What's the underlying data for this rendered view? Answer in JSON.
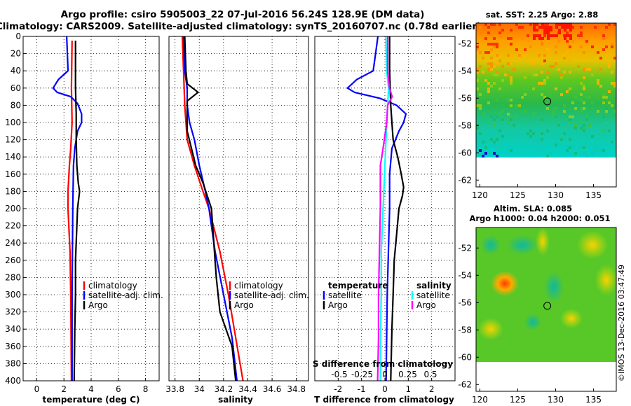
{
  "figure": {
    "title_line1": "Argo profile: csiro 5905003_22 07-Jul-2016 56.24S 128.9E (DM data)",
    "title_line2": "Climatology: CARS2009. Satellite-adjusted climatology: synTS_20160707.nc (0.78d earlier)",
    "watermark": "©IMOS 13-Dec-2016 03:47:49"
  },
  "colors": {
    "climatology": "#ff0000",
    "satellite_adj": "#0000ff",
    "argo": "#000000",
    "satellite_salinity": "#00ffff",
    "argo_salinity_diff": "#ff00ff"
  },
  "chart_data": [
    {
      "id": "temperature",
      "type": "line",
      "xlabel": "temperature (deg C)",
      "ylabel": "",
      "xlim": [
        -1,
        9
      ],
      "ylim": [
        400,
        0
      ],
      "xticks": [
        0,
        2,
        4,
        6,
        8
      ],
      "xtick_labels": [
        "0",
        "2",
        "4",
        "6",
        "8"
      ],
      "yticks": [
        0,
        20,
        40,
        60,
        80,
        100,
        120,
        140,
        160,
        180,
        200,
        220,
        240,
        260,
        280,
        300,
        320,
        340,
        360,
        380,
        400
      ],
      "yticks_labeled": true,
      "legend": [
        "climatology",
        "satellite-adj. clim.",
        "Argo"
      ],
      "series": [
        {
          "name": "climatology",
          "color": "#ff0000",
          "depth": [
            5,
            60,
            100,
            130,
            150,
            180,
            200,
            250,
            300,
            400
          ],
          "values": [
            2.6,
            2.55,
            2.6,
            2.5,
            2.4,
            2.3,
            2.3,
            2.45,
            2.5,
            2.55
          ]
        },
        {
          "name": "satellite-adj. clim.",
          "color": "#0000ff",
          "depth": [
            0,
            20,
            40,
            50,
            60,
            65,
            70,
            78,
            90,
            100,
            110,
            130,
            150,
            200,
            300,
            400
          ],
          "values": [
            2.2,
            2.25,
            2.3,
            1.6,
            1.2,
            1.5,
            2.5,
            3.0,
            3.3,
            3.3,
            3.0,
            2.8,
            2.7,
            2.65,
            2.6,
            2.6
          ]
        },
        {
          "name": "Argo",
          "color": "#000000",
          "depth": [
            5,
            30,
            60,
            90,
            120,
            150,
            170,
            180,
            200,
            260,
            300,
            340,
            400
          ],
          "values": [
            2.85,
            2.85,
            2.85,
            2.9,
            2.9,
            2.95,
            3.05,
            3.15,
            3.0,
            2.85,
            2.85,
            2.8,
            2.75
          ]
        }
      ]
    },
    {
      "id": "salinity",
      "type": "line",
      "xlabel": "salinity",
      "xlim": [
        33.75,
        34.9
      ],
      "ylim": [
        400,
        0
      ],
      "xticks": [
        33.8,
        34,
        34.2,
        34.4,
        34.6,
        34.8
      ],
      "xtick_labels": [
        "33.8",
        "34",
        "34.2",
        "34.4",
        "34.6",
        "34.8"
      ],
      "legend": [
        "climatology",
        "satellite-adj. clim.",
        "Argo"
      ],
      "series": [
        {
          "name": "climatology",
          "color": "#ff0000",
          "depth": [
            0,
            40,
            80,
            120,
            150,
            180,
            200,
            250,
            300,
            350,
            400
          ],
          "values": [
            33.86,
            33.87,
            33.88,
            33.9,
            33.96,
            34.03,
            34.08,
            34.17,
            34.24,
            34.3,
            34.36
          ]
        },
        {
          "name": "satellite-adj. clim.",
          "color": "#0000ff",
          "depth": [
            0,
            40,
            60,
            80,
            100,
            120,
            150,
            180,
            200,
            250,
            300,
            350,
            400
          ],
          "values": [
            33.87,
            33.88,
            33.9,
            33.9,
            33.92,
            33.96,
            34.0,
            34.05,
            34.08,
            34.13,
            34.2,
            34.27,
            34.31
          ]
        },
        {
          "name": "Argo",
          "color": "#000000",
          "depth": [
            0,
            40,
            55,
            65,
            75,
            90,
            110,
            150,
            170,
            200,
            240,
            280,
            320,
            360,
            400
          ],
          "values": [
            33.88,
            33.89,
            33.9,
            33.99,
            33.9,
            33.9,
            33.9,
            33.97,
            34.03,
            34.1,
            34.12,
            34.14,
            34.17,
            34.27,
            34.3
          ]
        }
      ]
    },
    {
      "id": "difference",
      "type": "line",
      "xlabel": "T difference from climatology",
      "xlim": [
        -3,
        3
      ],
      "ylim": [
        400,
        0
      ],
      "xticks": [
        -2,
        -1,
        0,
        1,
        2
      ],
      "xtick_labels": [
        "-2",
        "-1",
        "0",
        "1",
        "2"
      ],
      "top_axis_label": "S difference from climatology",
      "top_ticks": [
        -0.5,
        -0.25,
        0,
        0.25,
        0.5
      ],
      "top_tick_labels": [
        "-0.5",
        "-0.25",
        "0",
        "0.25",
        "0.5"
      ],
      "legend_temperature_title": "temperature",
      "legend_temperature": [
        "satellite",
        "Argo"
      ],
      "legend_salinity_title": "salinity",
      "legend_salinity": [
        "satellite",
        "Argo"
      ],
      "series": [
        {
          "name": "temperature satellite",
          "color": "#0000ff",
          "depth": [
            0,
            20,
            40,
            50,
            60,
            65,
            72,
            80,
            90,
            100,
            110,
            130,
            160,
            200,
            300,
            400
          ],
          "values": [
            -0.3,
            -0.4,
            -0.5,
            -1.2,
            -1.6,
            -1.3,
            -0.2,
            0.5,
            0.9,
            0.8,
            0.6,
            0.3,
            0.2,
            0.2,
            0.1,
            0.05
          ]
        },
        {
          "name": "temperature Argo",
          "color": "#000000",
          "depth": [
            0,
            40,
            80,
            120,
            140,
            160,
            175,
            185,
            200,
            230,
            260,
            300,
            340,
            400
          ],
          "values": [
            0.2,
            0.2,
            0.25,
            0.35,
            0.55,
            0.7,
            0.8,
            0.75,
            0.6,
            0.5,
            0.4,
            0.35,
            0.3,
            0.25
          ]
        },
        {
          "name": "salinity satellite",
          "color": "#00ffff",
          "depth": [
            0,
            40,
            60,
            80,
            100,
            150,
            200,
            250,
            300,
            350,
            400
          ],
          "values": [
            0.01,
            0.02,
            0.04,
            0.03,
            0.02,
            0.0,
            -0.02,
            -0.04,
            -0.04,
            -0.05,
            -0.05
          ]
        },
        {
          "name": "salinity Argo",
          "color": "#ff00ff",
          "depth": [
            0,
            40,
            60,
            70,
            80,
            100,
            130,
            150,
            200,
            250,
            300,
            350,
            400
          ],
          "values": [
            0.03,
            0.03,
            0.05,
            0.08,
            0.03,
            0.02,
            -0.02,
            -0.05,
            -0.05,
            -0.06,
            -0.07,
            -0.07,
            -0.08
          ]
        }
      ]
    },
    {
      "id": "sst_map",
      "type": "heatmap",
      "title": "sat. SST: 2.25 Argo: 2.88",
      "xlim": [
        119.5,
        138
      ],
      "ylim": [
        -62.5,
        -50.5
      ],
      "xticks": [
        120,
        125,
        130,
        135
      ],
      "xtick_labels": [
        "120",
        "125",
        "130",
        "135"
      ],
      "yticks": [
        -52,
        -54,
        -56,
        -58,
        -60,
        -62
      ],
      "ytick_labels": [
        "-52",
        "-54",
        "-56",
        "-58",
        "-60",
        "-62"
      ],
      "marker": {
        "lon": 128.9,
        "lat": -56.24
      },
      "data_southern_limit": -60
    },
    {
      "id": "sla_map",
      "type": "heatmap",
      "title_line1": "Altim. SLA: 0.085",
      "title_line2": "Argo h1000: 0.04 h2000: 0.051",
      "xlim": [
        119.5,
        138
      ],
      "ylim": [
        -62.5,
        -50.5
      ],
      "xticks": [
        120,
        125,
        130,
        135
      ],
      "xtick_labels": [
        "120",
        "125",
        "130",
        "135"
      ],
      "yticks": [
        -52,
        -54,
        -56,
        -58,
        -60,
        -62
      ],
      "ytick_labels": [
        "-52",
        "-54",
        "-56",
        "-58",
        "-60",
        "-62"
      ],
      "marker": {
        "lon": 128.9,
        "lat": -56.24
      },
      "data_southern_limit": -60
    }
  ]
}
